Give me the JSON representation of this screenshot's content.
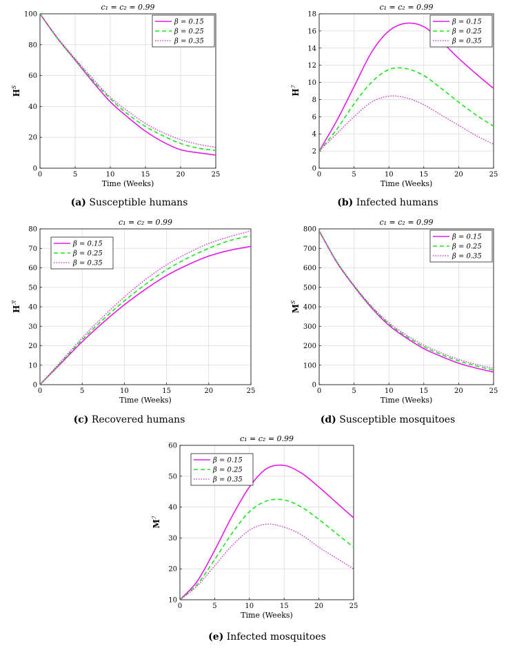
{
  "figure": {
    "series_styles": [
      {
        "color": "#e619e6",
        "dash": "",
        "width": 1.6
      },
      {
        "color": "#19e619",
        "dash": "6,4",
        "width": 1.6
      },
      {
        "color": "#cc22cc",
        "dash": "1.5,2",
        "width": 1.3
      }
    ]
  },
  "chart_data": [
    {
      "id": "a",
      "type": "line",
      "title": "c₁ = c₂ = 0.99",
      "xlabel": "Time (Weeks)",
      "ylabel": "H",
      "ylabel_sup": "S",
      "xlim": [
        0,
        25
      ],
      "ylim": [
        0,
        100
      ],
      "xticks": [
        0,
        5,
        10,
        15,
        20,
        25
      ],
      "yticks": [
        0,
        20,
        40,
        60,
        80,
        100
      ],
      "legend_position": "top-right",
      "caption_letter": "(a)",
      "caption_text": "Susceptible humans",
      "x": [
        0,
        2.5,
        5,
        7.5,
        10,
        12.5,
        15,
        17.5,
        20,
        22.5,
        25
      ],
      "series": [
        {
          "name": "β = 0.15",
          "values": [
            100,
            84,
            70,
            56,
            43,
            33,
            24,
            17,
            12,
            10,
            8.5
          ]
        },
        {
          "name": "β = 0.25",
          "values": [
            100,
            84,
            70.5,
            57,
            45,
            35,
            27,
            21,
            16,
            13,
            11.5
          ]
        },
        {
          "name": "β = 0.35",
          "values": [
            100,
            84.5,
            71,
            58,
            46,
            37,
            29,
            23,
            18.5,
            15.5,
            13.5
          ]
        }
      ]
    },
    {
      "id": "b",
      "type": "line",
      "title": "c₁ = c₂ = 0.99",
      "xlabel": "Time (Weeks)",
      "ylabel": "H",
      "ylabel_sup": "ℐ",
      "xlim": [
        0,
        25
      ],
      "ylim": [
        0,
        18
      ],
      "xticks": [
        0,
        5,
        10,
        15,
        20,
        25
      ],
      "yticks": [
        0,
        2,
        4,
        6,
        8,
        10,
        12,
        14,
        16,
        18
      ],
      "legend_position": "top-right",
      "caption_letter": "(b)",
      "caption_text": "Infected humans",
      "x": [
        0,
        2.5,
        5,
        7.5,
        10,
        12.5,
        15,
        17.5,
        20,
        22.5,
        25
      ],
      "series": [
        {
          "name": "β = 0.15",
          "values": [
            2,
            5.5,
            9.5,
            13.5,
            16,
            16.9,
            16.5,
            14.8,
            12.8,
            11,
            9.3
          ]
        },
        {
          "name": "β = 0.25",
          "values": [
            2,
            4.5,
            7.5,
            10,
            11.5,
            11.6,
            10.8,
            9.3,
            7.7,
            6.2,
            4.9
          ]
        },
        {
          "name": "β = 0.35",
          "values": [
            2,
            4,
            6,
            7.7,
            8.4,
            8.2,
            7.4,
            6.2,
            5,
            3.8,
            2.8
          ]
        }
      ]
    },
    {
      "id": "c",
      "type": "line",
      "title": "c₁ = c₂ = 0.99",
      "xlabel": "Time (Weeks)",
      "ylabel": "H",
      "ylabel_sup": "ℛ",
      "xlim": [
        0,
        25
      ],
      "ylim": [
        0,
        80
      ],
      "xticks": [
        0,
        5,
        10,
        15,
        20,
        25
      ],
      "yticks": [
        0,
        10,
        20,
        30,
        40,
        50,
        60,
        70,
        80
      ],
      "legend_position": "top-left",
      "caption_letter": "(c)",
      "caption_text": "Recovered humans",
      "x": [
        0,
        2.5,
        5,
        7.5,
        10,
        12.5,
        15,
        17.5,
        20,
        22.5,
        25
      ],
      "series": [
        {
          "name": "β = 0.15",
          "values": [
            0,
            11,
            22,
            32,
            41,
            49,
            56,
            61.5,
            66,
            69,
            71
          ]
        },
        {
          "name": "β = 0.25",
          "values": [
            0,
            11.5,
            23,
            33.5,
            43,
            51.5,
            59,
            65,
            70,
            74,
            76.5
          ]
        },
        {
          "name": "β = 0.35",
          "values": [
            0,
            12,
            24,
            35,
            45,
            54,
            61.5,
            67.5,
            72.5,
            76,
            79
          ]
        }
      ]
    },
    {
      "id": "d",
      "type": "line",
      "title": "c₁ = c₂ = 0.99",
      "xlabel": "Time (Weeks)",
      "ylabel": "M",
      "ylabel_sup": "S",
      "xlim": [
        0,
        25
      ],
      "ylim": [
        0,
        800
      ],
      "xticks": [
        0,
        5,
        10,
        15,
        20,
        25
      ],
      "yticks": [
        0,
        100,
        200,
        300,
        400,
        500,
        600,
        700,
        800
      ],
      "legend_position": "top-right",
      "caption_letter": "(d)",
      "caption_text": "Susceptible mosquitoes",
      "x": [
        0,
        2.5,
        5,
        7.5,
        10,
        12.5,
        15,
        17.5,
        20,
        22.5,
        25
      ],
      "series": [
        {
          "name": "β = 0.15",
          "values": [
            790,
            630,
            505,
            395,
            305,
            240,
            185,
            145,
            110,
            85,
            65
          ]
        },
        {
          "name": "β = 0.25",
          "values": [
            790,
            632,
            508,
            400,
            312,
            248,
            195,
            155,
            122,
            96,
            75
          ]
        },
        {
          "name": "β = 0.35",
          "values": [
            790,
            634,
            510,
            403,
            318,
            255,
            203,
            163,
            130,
            104,
            84
          ]
        }
      ]
    },
    {
      "id": "e",
      "type": "line",
      "title": "c₁ = c₂ = 0.99",
      "xlabel": "Time (Weeks)",
      "ylabel": "M",
      "ylabel_sup": "ℐ",
      "xlim": [
        0,
        25
      ],
      "ylim": [
        10,
        60
      ],
      "xticks": [
        0,
        5,
        10,
        15,
        20,
        25
      ],
      "yticks": [
        10,
        20,
        30,
        40,
        50,
        60
      ],
      "legend_position": "top-left",
      "caption_letter": "(e)",
      "caption_text": "Infected mosquitoes",
      "x": [
        0,
        2.5,
        5,
        7.5,
        10,
        12.5,
        15,
        17.5,
        20,
        22.5,
        25
      ],
      "series": [
        {
          "name": "β = 0.15",
          "values": [
            10,
            16,
            26,
            37,
            46.5,
            52.5,
            53.5,
            51,
            46.5,
            41.5,
            36.5
          ]
        },
        {
          "name": "β = 0.25",
          "values": [
            10,
            15,
            23,
            31.5,
            38.5,
            42,
            42.3,
            40,
            36,
            31.5,
            27
          ]
        },
        {
          "name": "β = 0.35",
          "values": [
            10,
            14.5,
            21,
            27.5,
            32.5,
            34.5,
            33.5,
            31,
            27,
            23.5,
            20
          ]
        }
      ]
    }
  ]
}
